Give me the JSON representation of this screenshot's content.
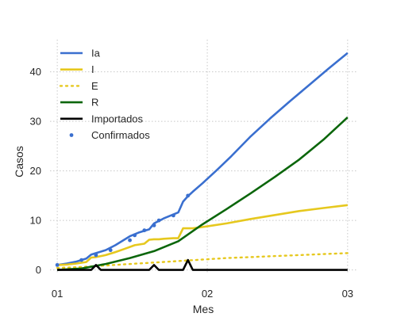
{
  "chart_data": {
    "type": "line",
    "title": "",
    "xlabel": "Mes",
    "ylabel": "Casos",
    "x_ticks": [
      {
        "value": 0,
        "label": "01"
      },
      {
        "value": 31,
        "label": "02"
      },
      {
        "value": 60,
        "label": "03"
      }
    ],
    "y_ticks": [
      0,
      10,
      20,
      30,
      40
    ],
    "xlim": [
      -1.5,
      62
    ],
    "ylim": [
      -0.7,
      46.5
    ],
    "grid": true,
    "legend_position": "top-left",
    "series": [
      {
        "name": "Ia",
        "color": "#3a6fcf",
        "style": "solid",
        "x": [
          0,
          2,
          4,
          6,
          7,
          8,
          10,
          12,
          14,
          15,
          17,
          19,
          20,
          21,
          22,
          24,
          25,
          26,
          27,
          28,
          30,
          33,
          36,
          40,
          44,
          48,
          52,
          56,
          60
        ],
        "y": [
          1,
          1.3,
          1.7,
          2.3,
          3.1,
          3.4,
          4,
          5,
          6.2,
          6.8,
          7.6,
          8.2,
          9.4,
          9.9,
          10.4,
          11.2,
          11.6,
          13.8,
          14.9,
          15.8,
          17.5,
          20.2,
          23,
          27,
          30.6,
          34,
          37.3,
          40.6,
          43.8
        ]
      },
      {
        "name": "I",
        "color": "#e6c81e",
        "style": "solid",
        "x": [
          0,
          2,
          4,
          6,
          7,
          8,
          10,
          12,
          14,
          16,
          18,
          19,
          20,
          21,
          22,
          24,
          25,
          26,
          27,
          28,
          31,
          35,
          40,
          45,
          50,
          55,
          60
        ],
        "y": [
          1,
          1.1,
          1.3,
          1.6,
          2.5,
          2.6,
          3,
          3.6,
          4.3,
          5,
          5.3,
          6.1,
          6.2,
          6.2,
          6.3,
          6.4,
          6.4,
          8.4,
          8.4,
          8.4,
          8.8,
          9.4,
          10.3,
          11.1,
          11.9,
          12.5,
          13.1
        ]
      },
      {
        "name": "E",
        "color": "#e6c81e",
        "style": "dotted",
        "x": [
          0,
          5,
          10,
          15,
          20,
          25,
          30,
          35,
          40,
          45,
          50,
          55,
          60
        ],
        "y": [
          0.4,
          0.6,
          0.9,
          1.2,
          1.5,
          1.8,
          2.1,
          2.4,
          2.6,
          2.8,
          3,
          3.2,
          3.4
        ]
      },
      {
        "name": "R",
        "color": "#0b660b",
        "style": "solid",
        "x": [
          0,
          5,
          10,
          15,
          20,
          25,
          30,
          35,
          40,
          45,
          50,
          55,
          60
        ],
        "y": [
          0,
          0.3,
          1.2,
          2.4,
          3.8,
          5.8,
          9.2,
          12.3,
          15.5,
          18.8,
          22.3,
          26.3,
          30.8
        ]
      },
      {
        "name": "Importados",
        "color": "#000000",
        "style": "solid",
        "x": [
          0,
          7,
          8,
          9,
          19,
          20,
          21,
          26,
          27,
          28,
          60
        ],
        "y": [
          0,
          0,
          1,
          0,
          0,
          1,
          0,
          0,
          2,
          0,
          0
        ]
      },
      {
        "name": "Confirmados",
        "color": "#3a6fcf",
        "style": "points",
        "x": [
          0,
          5,
          8,
          11,
          15,
          16,
          18,
          20,
          21,
          24,
          27
        ],
        "y": [
          1,
          2,
          3,
          4,
          6,
          7,
          8,
          9,
          10,
          11,
          15
        ]
      }
    ]
  }
}
